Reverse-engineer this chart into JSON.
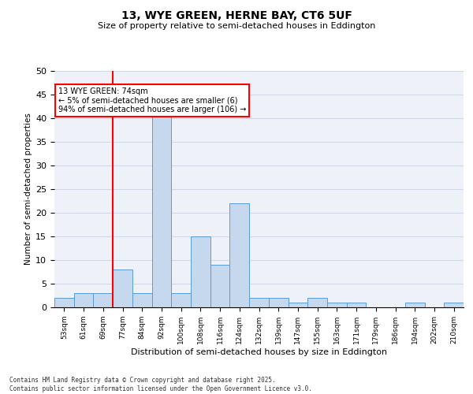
{
  "title1": "13, WYE GREEN, HERNE BAY, CT6 5UF",
  "title2": "Size of property relative to semi-detached houses in Eddington",
  "xlabel": "Distribution of semi-detached houses by size in Eddington",
  "ylabel": "Number of semi-detached properties",
  "bins": [
    "53sqm",
    "61sqm",
    "69sqm",
    "77sqm",
    "84sqm",
    "92sqm",
    "100sqm",
    "108sqm",
    "116sqm",
    "124sqm",
    "132sqm",
    "139sqm",
    "147sqm",
    "155sqm",
    "163sqm",
    "171sqm",
    "179sqm",
    "186sqm",
    "194sqm",
    "202sqm",
    "210sqm"
  ],
  "values": [
    2,
    3,
    3,
    8,
    3,
    41,
    3,
    15,
    9,
    22,
    2,
    2,
    1,
    2,
    1,
    1,
    0,
    0,
    1,
    0,
    1
  ],
  "bar_color": "#c5d8ed",
  "bar_edge_color": "#5b9bd5",
  "grid_color": "#d0d8e8",
  "background_color": "#eef2f8",
  "red_line_x": 2.5,
  "annotation_text": "13 WYE GREEN: 74sqm\n← 5% of semi-detached houses are smaller (6)\n94% of semi-detached houses are larger (106) →",
  "footnote": "Contains HM Land Registry data © Crown copyright and database right 2025.\nContains public sector information licensed under the Open Government Licence v3.0.",
  "ylim": [
    0,
    50
  ],
  "yticks": [
    0,
    5,
    10,
    15,
    20,
    25,
    30,
    35,
    40,
    45,
    50
  ]
}
